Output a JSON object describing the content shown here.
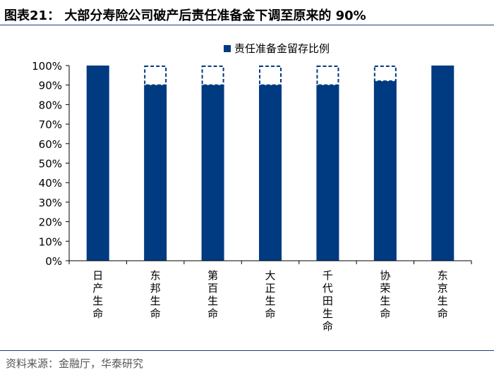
{
  "header": {
    "title": "图表21：  大部分寿险公司破产后责任准备金下调至原来的 90%"
  },
  "footer": {
    "source": "资料来源：金融厅，华泰研究"
  },
  "colors": {
    "bar": "#003a80",
    "rule": "#1f3f7a"
  },
  "chart_data": {
    "type": "bar",
    "categories": [
      "日产生命",
      "东邦生命",
      "第百生命",
      "大正生命",
      "千代田生命",
      "协荣生命",
      "东京生命"
    ],
    "series": [
      {
        "name": "责任准备金留存比例",
        "values": [
          100,
          90,
          90,
          90,
          90,
          92,
          100
        ]
      }
    ],
    "reference_value": 100,
    "ylim": [
      0,
      100
    ],
    "yticks": [
      "0%",
      "10%",
      "20%",
      "30%",
      "40%",
      "50%",
      "60%",
      "70%",
      "80%",
      "90%",
      "100%"
    ],
    "legend": "top-right",
    "grid": false
  }
}
